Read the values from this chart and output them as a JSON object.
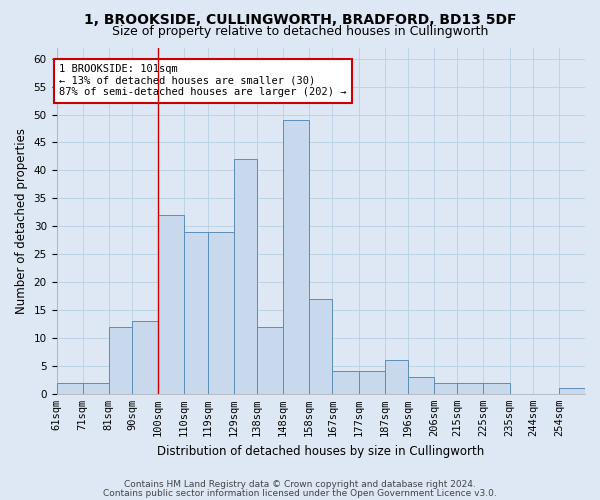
{
  "title1": "1, BROOKSIDE, CULLINGWORTH, BRADFORD, BD13 5DF",
  "title2": "Size of property relative to detached houses in Cullingworth",
  "xlabel": "Distribution of detached houses by size in Cullingworth",
  "ylabel": "Number of detached properties",
  "bin_labels": [
    "61sqm",
    "71sqm",
    "81sqm",
    "90sqm",
    "100sqm",
    "110sqm",
    "119sqm",
    "129sqm",
    "138sqm",
    "148sqm",
    "158sqm",
    "167sqm",
    "177sqm",
    "187sqm",
    "196sqm",
    "206sqm",
    "215sqm",
    "225sqm",
    "235sqm",
    "244sqm",
    "254sqm"
  ],
  "bin_edges": [
    61,
    71,
    81,
    90,
    100,
    110,
    119,
    129,
    138,
    148,
    158,
    167,
    177,
    187,
    196,
    206,
    215,
    225,
    235,
    244,
    254,
    264
  ],
  "heights": [
    2,
    2,
    12,
    13,
    32,
    29,
    29,
    42,
    12,
    49,
    17,
    4,
    4,
    6,
    3,
    2,
    2,
    2,
    0,
    0,
    1
  ],
  "bar_color": "#c8d9ed",
  "bar_edge_color": "#5b8db8",
  "vline_x": 100,
  "vline_color": "#cc0000",
  "annotation_text": "1 BROOKSIDE: 101sqm\n← 13% of detached houses are smaller (30)\n87% of semi-detached houses are larger (202) →",
  "annotation_box_color": "#ffffff",
  "annotation_box_edgecolor": "#cc0000",
  "ylim": [
    0,
    62
  ],
  "yticks": [
    0,
    5,
    10,
    15,
    20,
    25,
    30,
    35,
    40,
    45,
    50,
    55,
    60
  ],
  "grid_color": "#b8cfe0",
  "background_color": "#dde8f4",
  "footer1": "Contains HM Land Registry data © Crown copyright and database right 2024.",
  "footer2": "Contains public sector information licensed under the Open Government Licence v3.0.",
  "title_fontsize": 10,
  "subtitle_fontsize": 9,
  "axis_label_fontsize": 8.5,
  "tick_fontsize": 7.5,
  "footer_fontsize": 6.5,
  "annot_fontsize": 7.5
}
